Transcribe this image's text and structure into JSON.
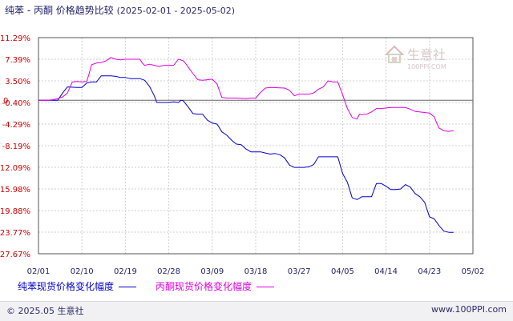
{
  "header": {
    "title": "纯苯 - 丙酮 价格趋势比较",
    "date_range": "(2025-02-01 - 2025-05-02)"
  },
  "watermark": {
    "text": "生意社",
    "subtext": "100PPI.COM"
  },
  "footer": {
    "copyright": "© 2025.05 生意社",
    "url": "www.100PPI.com"
  },
  "chart_data": {
    "type": "line",
    "title": "纯苯 - 丙酮 价格趋势比较",
    "subtitle": "(2025-02-01 - 2025-05-02)",
    "y_ticks": [
      "11.29%",
      "7.39%",
      "3.50%",
      "-0.40%",
      "-4.29%",
      "-8.19%",
      "-12.09%",
      "-15.98%",
      "-19.88%",
      "-23.77%",
      "-27.67%"
    ],
    "y_zero_label": "0",
    "ylim": [
      -27.67,
      11.29
    ],
    "x_ticks": [
      "02/01",
      "02/10",
      "02/19",
      "02/28",
      "03/09",
      "03/18",
      "03/27",
      "04/05",
      "04/14",
      "04/23",
      "05/02"
    ],
    "xlim_days": [
      0,
      90
    ],
    "grid": true,
    "legend_position": "bottom",
    "series": [
      {
        "name": "纯苯现货价格变化幅度",
        "color": "#0000cc",
        "points": [
          [
            0,
            0
          ],
          [
            4,
            0
          ],
          [
            5,
            1.3
          ],
          [
            6,
            2.4
          ],
          [
            8,
            2.3
          ],
          [
            9,
            2.3
          ],
          [
            10,
            3.1
          ],
          [
            11,
            3.3
          ],
          [
            12,
            3.3
          ],
          [
            13,
            4.4
          ],
          [
            15,
            4.4
          ],
          [
            16,
            4.3
          ],
          [
            17,
            4.1
          ],
          [
            18,
            4.1
          ],
          [
            19,
            3.9
          ],
          [
            21,
            3.9
          ],
          [
            22,
            3.6
          ],
          [
            23,
            2.5
          ],
          [
            24,
            0.8
          ],
          [
            24.5,
            -0.4
          ],
          [
            26,
            -0.4
          ],
          [
            27,
            -0.4
          ],
          [
            28,
            -0.3
          ],
          [
            29,
            -0.4
          ],
          [
            29.5,
            0
          ],
          [
            30,
            -0.1
          ],
          [
            31,
            -1.2
          ],
          [
            32,
            -2.4
          ],
          [
            33,
            -2.5
          ],
          [
            34,
            -2.5
          ],
          [
            35,
            -3.6
          ],
          [
            36,
            -4.1
          ],
          [
            37,
            -4.3
          ],
          [
            38,
            -5.7
          ],
          [
            39,
            -6.3
          ],
          [
            40,
            -7.2
          ],
          [
            41,
            -7.9
          ],
          [
            42,
            -8.0
          ],
          [
            43,
            -8.8
          ],
          [
            44,
            -9.3
          ],
          [
            46,
            -9.3
          ],
          [
            47,
            -9.5
          ],
          [
            48,
            -9.7
          ],
          [
            49,
            -9.6
          ],
          [
            50,
            -9.8
          ],
          [
            51,
            -10.4
          ],
          [
            52,
            -11.7
          ],
          [
            53,
            -12.1
          ],
          [
            55,
            -12.1
          ],
          [
            56,
            -12.0
          ],
          [
            57,
            -11.6
          ],
          [
            58,
            -10.2
          ],
          [
            59,
            -10.2
          ],
          [
            61,
            -10.2
          ],
          [
            62,
            -10.2
          ],
          [
            63,
            -13.2
          ],
          [
            64,
            -14.8
          ],
          [
            65,
            -17.6
          ],
          [
            66,
            -17.9
          ],
          [
            67,
            -17.4
          ],
          [
            68,
            -17.4
          ],
          [
            69,
            -17.4
          ],
          [
            70,
            -15.0
          ],
          [
            71,
            -15.0
          ],
          [
            72,
            -15.5
          ],
          [
            73,
            -16.1
          ],
          [
            74,
            -16.1
          ],
          [
            75,
            -16.0
          ],
          [
            76,
            -15.2
          ],
          [
            77,
            -15.6
          ],
          [
            78,
            -16.8
          ],
          [
            79,
            -17.4
          ],
          [
            80,
            -18.4
          ],
          [
            81,
            -21.0
          ],
          [
            82,
            -21.4
          ],
          [
            83,
            -22.6
          ],
          [
            84,
            -23.6
          ],
          [
            85,
            -23.8
          ],
          [
            86,
            -23.8
          ]
        ]
      },
      {
        "name": "丙酮现货价格变化幅度",
        "color": "#e000e0",
        "points": [
          [
            0,
            0
          ],
          [
            2,
            0
          ],
          [
            3,
            0.1
          ],
          [
            4,
            0.3
          ],
          [
            5,
            0.6
          ],
          [
            6,
            1.3
          ],
          [
            7,
            3.3
          ],
          [
            8,
            3.4
          ],
          [
            9,
            3.3
          ],
          [
            10,
            3.4
          ],
          [
            10.5,
            4.8
          ],
          [
            11,
            6.4
          ],
          [
            12,
            6.7
          ],
          [
            13,
            6.8
          ],
          [
            14,
            7.1
          ],
          [
            15,
            7.7
          ],
          [
            16,
            7.4
          ],
          [
            17,
            7.3
          ],
          [
            18,
            7.4
          ],
          [
            19,
            7.4
          ],
          [
            20,
            7.4
          ],
          [
            21,
            7.4
          ],
          [
            21.5,
            6.7
          ],
          [
            22,
            6.3
          ],
          [
            23,
            6.5
          ],
          [
            24,
            6.3
          ],
          [
            25,
            6.1
          ],
          [
            26,
            6.3
          ],
          [
            27,
            6.3
          ],
          [
            28,
            6.3
          ],
          [
            29,
            7.4
          ],
          [
            30,
            7.1
          ],
          [
            30.5,
            6.6
          ],
          [
            31,
            6.0
          ],
          [
            32,
            4.8
          ],
          [
            33,
            3.7
          ],
          [
            34,
            3.6
          ],
          [
            35,
            3.7
          ],
          [
            36,
            3.8
          ],
          [
            37,
            2.9
          ],
          [
            38,
            0.5
          ],
          [
            39,
            0.4
          ],
          [
            41,
            0.4
          ],
          [
            43,
            0.3
          ],
          [
            44,
            0.4
          ],
          [
            45,
            0.4
          ],
          [
            46,
            1.4
          ],
          [
            47,
            2.2
          ],
          [
            48,
            2.3
          ],
          [
            51,
            2.2
          ],
          [
            52,
            1.8
          ],
          [
            53,
            0.8
          ],
          [
            54,
            1.1
          ],
          [
            56,
            1.1
          ],
          [
            57,
            1.3
          ],
          [
            58,
            2.0
          ],
          [
            59,
            2.4
          ],
          [
            60,
            3.5
          ],
          [
            61,
            3.3
          ],
          [
            62,
            3.3
          ],
          [
            63,
            1.0
          ],
          [
            64,
            -1.5
          ],
          [
            65,
            -3.1
          ],
          [
            66,
            -3.4
          ],
          [
            66.5,
            -2.5
          ],
          [
            67,
            -2.6
          ],
          [
            68,
            -2.5
          ],
          [
            69,
            -2.1
          ],
          [
            70,
            -1.5
          ],
          [
            71,
            -1.5
          ],
          [
            72,
            -1.4
          ],
          [
            73,
            -1.3
          ],
          [
            76,
            -1.3
          ],
          [
            77,
            -1.6
          ],
          [
            78,
            -2.0
          ],
          [
            81,
            -2.3
          ],
          [
            82,
            -3.0
          ],
          [
            82.5,
            -4.1
          ],
          [
            83,
            -5.0
          ],
          [
            84,
            -5.5
          ],
          [
            85,
            -5.6
          ],
          [
            86,
            -5.5
          ]
        ]
      }
    ]
  }
}
